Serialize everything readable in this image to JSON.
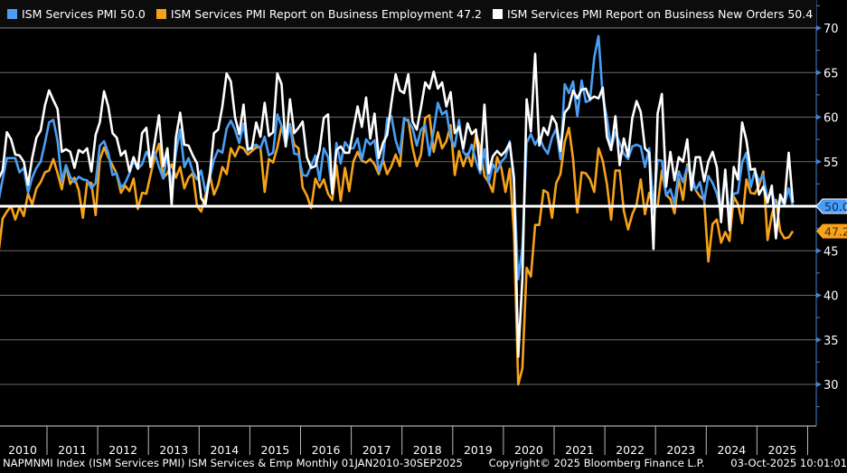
{
  "legend": [
    {
      "label": "ISM Services PMI 50.0",
      "color": "#4a9ff5"
    },
    {
      "label": "ISM Services PMI Report on Business Employment 47.2",
      "color": "#f7a21b"
    },
    {
      "label": "ISM Services PMI Report on Business New Orders 50.4",
      "color": "#ffffff"
    }
  ],
  "footer": {
    "description": "NAPMNMI Index (ISM Services PMI) ISM Services & Emp Monthly 01JAN2010-30SEP2025",
    "copyright": "Copyright© 2025 Bloomberg Finance L.P.",
    "timestamp": "03-Oct-2025 10:01:01"
  },
  "chart_data": {
    "type": "line",
    "title": "",
    "xlabel": "",
    "ylabel": "",
    "x_start": "2010-01",
    "x_end": "2025-09",
    "frequency": "monthly",
    "x_tick_labels": [
      "2010",
      "2011",
      "2012",
      "2013",
      "2014",
      "2015",
      "2016",
      "2017",
      "2018",
      "2019",
      "2020",
      "2021",
      "2022",
      "2023",
      "2024",
      "2025"
    ],
    "ylim": [
      25,
      72
    ],
    "y_ticks": [
      30,
      35,
      40,
      45,
      50,
      55,
      60,
      65,
      70
    ],
    "grid": true,
    "legend_position": "top",
    "reference_line": {
      "value": 50,
      "color": "#ffffff"
    },
    "last_value_labels": [
      {
        "value": 50.0,
        "text": "50.0",
        "color": "#4a9ff5"
      },
      {
        "value": 47.2,
        "text": "47.2",
        "color": "#f7a21b"
      }
    ],
    "series": [
      {
        "name": "ISM Services PMI",
        "color": "#4a9ff5",
        "values": [
          50.5,
          53.0,
          55.4,
          55.4,
          55.4,
          53.8,
          54.3,
          51.5,
          53.2,
          54.3,
          55.0,
          57.1,
          59.4,
          59.7,
          57.3,
          52.8,
          54.6,
          53.3,
          52.7,
          53.3,
          53.0,
          52.9,
          52.0,
          52.6,
          56.8,
          57.3,
          56.0,
          53.5,
          53.7,
          52.1,
          52.6,
          53.7,
          55.1,
          54.2,
          54.7,
          56.1,
          55.2,
          56.0,
          54.4,
          53.1,
          56.0,
          52.2,
          56.0,
          58.6,
          54.4,
          55.4,
          53.9,
          53.0,
          54.0,
          51.6,
          53.1,
          55.2,
          56.3,
          56.0,
          58.7,
          59.6,
          58.6,
          57.1,
          59.3,
          56.2,
          56.7,
          56.9,
          56.5,
          57.8,
          55.7,
          56.0,
          60.3,
          59.0,
          56.9,
          59.1,
          55.9,
          55.8,
          53.5,
          53.4,
          54.5,
          55.7,
          52.9,
          56.5,
          55.5,
          51.4,
          57.1,
          54.8,
          57.2,
          56.5,
          56.5,
          57.6,
          55.2,
          57.5,
          56.9,
          57.4,
          53.9,
          55.3,
          59.8,
          60.1,
          57.4,
          55.9,
          59.9,
          59.5,
          58.8,
          56.8,
          58.6,
          59.1,
          55.7,
          58.5,
          61.6,
          60.3,
          60.7,
          57.6,
          56.7,
          59.7,
          56.1,
          55.5,
          56.9,
          55.1,
          53.7,
          56.4,
          52.6,
          54.7,
          53.9,
          55.0,
          55.5,
          57.3,
          52.5,
          41.8,
          45.4,
          57.1,
          58.1,
          56.9,
          57.8,
          56.6,
          55.9,
          57.7,
          58.7,
          55.3,
          63.7,
          62.7,
          64.0,
          60.1,
          64.1,
          61.7,
          61.9,
          66.7,
          69.1,
          62.3,
          59.9,
          56.5,
          58.3,
          57.1,
          55.9,
          55.3,
          56.7,
          56.9,
          56.7,
          54.4,
          56.5,
          49.6,
          55.2,
          55.1,
          51.2,
          51.9,
          50.3,
          53.9,
          52.7,
          54.5,
          53.6,
          51.8,
          52.7,
          50.5,
          53.4,
          52.6,
          51.4,
          49.4,
          53.8,
          48.8,
          51.4,
          51.5,
          54.9,
          56.0,
          52.1,
          54.0,
          52.8,
          53.5,
          50.8,
          51.6,
          49.9,
          50.8,
          50.1,
          52.0,
          50.0
        ]
      },
      {
        "name": "ISM Services PMI Report on Business Employment",
        "color": "#f7a21b",
        "values": [
          44.6,
          48.6,
          49.4,
          50.0,
          48.5,
          49.9,
          48.9,
          51.4,
          50.2,
          52.0,
          52.7,
          53.8,
          54.0,
          55.3,
          53.7,
          51.9,
          54.6,
          52.5,
          53.2,
          51.8,
          48.7,
          52.7,
          52.6,
          49.0,
          55.2,
          56.6,
          55.5,
          54.6,
          53.6,
          51.5,
          52.3,
          51.7,
          53.1,
          49.7,
          51.5,
          51.4,
          53.5,
          55.6,
          57.0,
          53.2,
          53.7,
          54.7,
          53.2,
          54.4,
          52.0,
          53.2,
          53.7,
          50.0,
          49.4,
          51.2,
          53.6,
          51.3,
          52.4,
          54.4,
          53.6,
          56.5,
          55.6,
          56.7,
          56.5,
          55.8,
          56.2,
          56.6,
          56.6,
          51.6,
          55.3,
          54.9,
          56.6,
          59.0,
          58.3,
          59.2,
          56.9,
          56.5,
          52.1,
          51.2,
          49.8,
          53.1,
          52.1,
          53.0,
          51.4,
          50.7,
          54.6,
          50.6,
          54.3,
          51.7,
          55.0,
          56.1,
          55.1,
          54.9,
          55.3,
          54.7,
          53.6,
          55.2,
          53.6,
          54.5,
          55.8,
          54.5,
          59.7,
          59.7,
          56.6,
          54.5,
          55.8,
          59.9,
          60.2,
          56.1,
          58.3,
          56.5,
          57.3,
          59.1,
          53.5,
          56.2,
          54.5,
          55.9,
          54.5,
          58.1,
          56.6,
          53.4,
          52.7,
          51.6,
          55.5,
          54.3,
          51.6,
          54.2,
          47.0,
          30.0,
          31.8,
          43.1,
          42.1,
          47.9,
          47.9,
          51.8,
          51.5,
          48.7,
          52.6,
          53.6,
          57.2,
          58.8,
          55.3,
          49.3,
          53.8,
          53.7,
          53.0,
          51.6,
          56.5,
          55.1,
          52.5,
          48.5,
          54.0,
          54.0,
          49.5,
          47.4,
          49.1,
          50.2,
          53.0,
          49.1,
          51.5,
          49.8,
          50.0,
          54.0,
          51.3,
          50.8,
          49.2,
          53.1,
          50.7,
          54.7,
          53.1,
          51.8,
          51.1,
          50.7,
          43.8,
          48.0,
          48.5,
          45.9,
          47.1,
          46.1,
          51.1,
          50.2,
          48.1,
          53.0,
          51.5,
          51.4,
          52.3,
          53.9,
          46.2,
          49.0,
          50.7,
          47.2,
          46.4,
          46.5,
          47.2
        ]
      },
      {
        "name": "ISM Services PMI Report on Business New Orders",
        "color": "#ffffff",
        "values": [
          53.0,
          54.0,
          58.3,
          57.5,
          55.8,
          55.7,
          55.0,
          52.4,
          55.4,
          57.7,
          58.5,
          61.3,
          63.0,
          61.9,
          60.9,
          56.1,
          56.4,
          56.1,
          54.3,
          56.3,
          56.0,
          56.5,
          53.9,
          58.0,
          59.4,
          62.9,
          61.2,
          58.2,
          57.7,
          55.7,
          56.2,
          53.9,
          55.5,
          54.2,
          58.2,
          58.8,
          54.4,
          57.2,
          60.2,
          54.5,
          56.5,
          50.2,
          57.7,
          60.5,
          56.9,
          56.8,
          55.7,
          54.8,
          50.9,
          50.2,
          53.4,
          58.2,
          58.6,
          61.2,
          64.9,
          64.0,
          60.0,
          58.1,
          61.4,
          56.4,
          56.5,
          59.4,
          57.8,
          61.6,
          57.9,
          58.3,
          64.9,
          63.7,
          56.7,
          62.0,
          58.2,
          58.8,
          59.5,
          55.5,
          54.3,
          54.5,
          56.3,
          59.9,
          60.3,
          51.4,
          56.3,
          56.7,
          56.0,
          56.0,
          58.6,
          61.2,
          58.9,
          62.2,
          57.6,
          60.4,
          55.4,
          57.1,
          58.0,
          61.6,
          64.8,
          63.0,
          62.7,
          64.8,
          59.5,
          58.6,
          61.1,
          63.9,
          63.2,
          65.1,
          63.2,
          63.9,
          61.2,
          62.8,
          58.2,
          58.9,
          56.5,
          59.3,
          58.1,
          58.6,
          54.1,
          61.4,
          53.7,
          55.6,
          56.2,
          55.7,
          56.2,
          57.1,
          53.2,
          33.1,
          41.9,
          62.0,
          58.4,
          67.1,
          56.8,
          58.8,
          58.0,
          60.1,
          59.3,
          56.2,
          60.5,
          61.1,
          63.0,
          62.1,
          63.1,
          63.2,
          62.0,
          62.3,
          62.1,
          63.3,
          57.8,
          56.3,
          60.1,
          54.6,
          57.6,
          55.6,
          59.9,
          61.8,
          60.6,
          56.5,
          56.0,
          45.2,
          60.4,
          62.6,
          52.2,
          56.1,
          52.9,
          55.5,
          55.0,
          57.5,
          51.8,
          55.5,
          55.5,
          52.8,
          55.0,
          56.1,
          54.4,
          48.2,
          54.1,
          47.3,
          54.4,
          53.0,
          59.4,
          57.4,
          54.1,
          54.2,
          51.3,
          52.2,
          50.4,
          52.3,
          46.4,
          51.3,
          50.3,
          56.0,
          50.4
        ]
      }
    ]
  }
}
